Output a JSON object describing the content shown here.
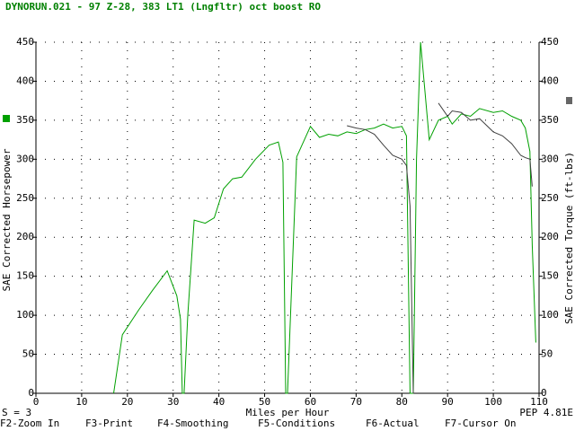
{
  "chart_data": {
    "type": "line",
    "title": "DYNORUN.021 - 97 Z-28, 383 LT1 (Lngfltr) oct boost  RO",
    "x_label": "Miles per Hour",
    "y_label": "SAE Corrected Horsepower",
    "y2_label": "SAE Corrected Torque (ft-lbs)",
    "x": [
      17,
      18.9,
      22.5,
      25.5,
      28.7,
      30.8,
      31.6,
      32,
      32.4,
      33.2,
      34.6,
      37,
      39,
      41,
      43,
      45,
      48,
      51,
      53,
      54,
      54.6,
      55,
      57,
      60,
      62,
      64,
      66,
      68,
      70,
      72,
      74,
      76,
      78,
      80,
      81,
      81.8,
      82.5,
      83.2,
      84.1,
      86,
      88,
      90,
      91,
      93,
      95,
      97,
      100,
      102,
      104,
      106,
      107,
      108,
      108.5,
      109.3
    ],
    "series": [
      {
        "color": "#00a000",
        "values": [
          0,
          75,
          107,
          132,
          157,
          125,
          95,
          0,
          0,
          100,
          222,
          218,
          225,
          262,
          275,
          277,
          300,
          318,
          322,
          296,
          0,
          0,
          303,
          342,
          328,
          332,
          330,
          335,
          333,
          338,
          340,
          345,
          340,
          342,
          330,
          0,
          0,
          300,
          450,
          325,
          350,
          355,
          345,
          358,
          355,
          365,
          360,
          362,
          355,
          350,
          340,
          310,
          190,
          65
        ]
      },
      {
        "color": "#404040",
        "axis": "y2",
        "values": [
          null,
          null,
          null,
          null,
          null,
          null,
          null,
          null,
          null,
          null,
          null,
          null,
          null,
          null,
          null,
          null,
          null,
          null,
          null,
          null,
          null,
          null,
          null,
          null,
          null,
          null,
          null,
          343,
          340,
          338,
          332,
          318,
          305,
          300,
          292,
          240,
          0,
          null,
          null,
          null,
          372,
          355,
          362,
          360,
          350,
          352,
          335,
          330,
          320,
          305,
          302,
          300,
          265,
          null
        ]
      }
    ],
    "xlim": [
      0,
      110
    ],
    "xticks": [
      0,
      10,
      20,
      30,
      40,
      50,
      60,
      70,
      80,
      90,
      100,
      110
    ],
    "ylim": [
      0,
      450
    ],
    "yticks": [
      0,
      50,
      100,
      150,
      200,
      250,
      300,
      350,
      400,
      450
    ],
    "y2lim": [
      0,
      450
    ],
    "y2ticks": [
      0,
      50,
      100,
      150,
      200,
      250,
      300,
      350,
      400,
      450
    ],
    "grid": true
  },
  "footer": {
    "status": "S = 3",
    "pep": "PEP 4.81E"
  },
  "function_keys": [
    "F2-Zoom In",
    "F3-Print",
    "F4-Smoothing",
    "F5-Conditions",
    "F6-Actual",
    "F7-Cursor On"
  ]
}
